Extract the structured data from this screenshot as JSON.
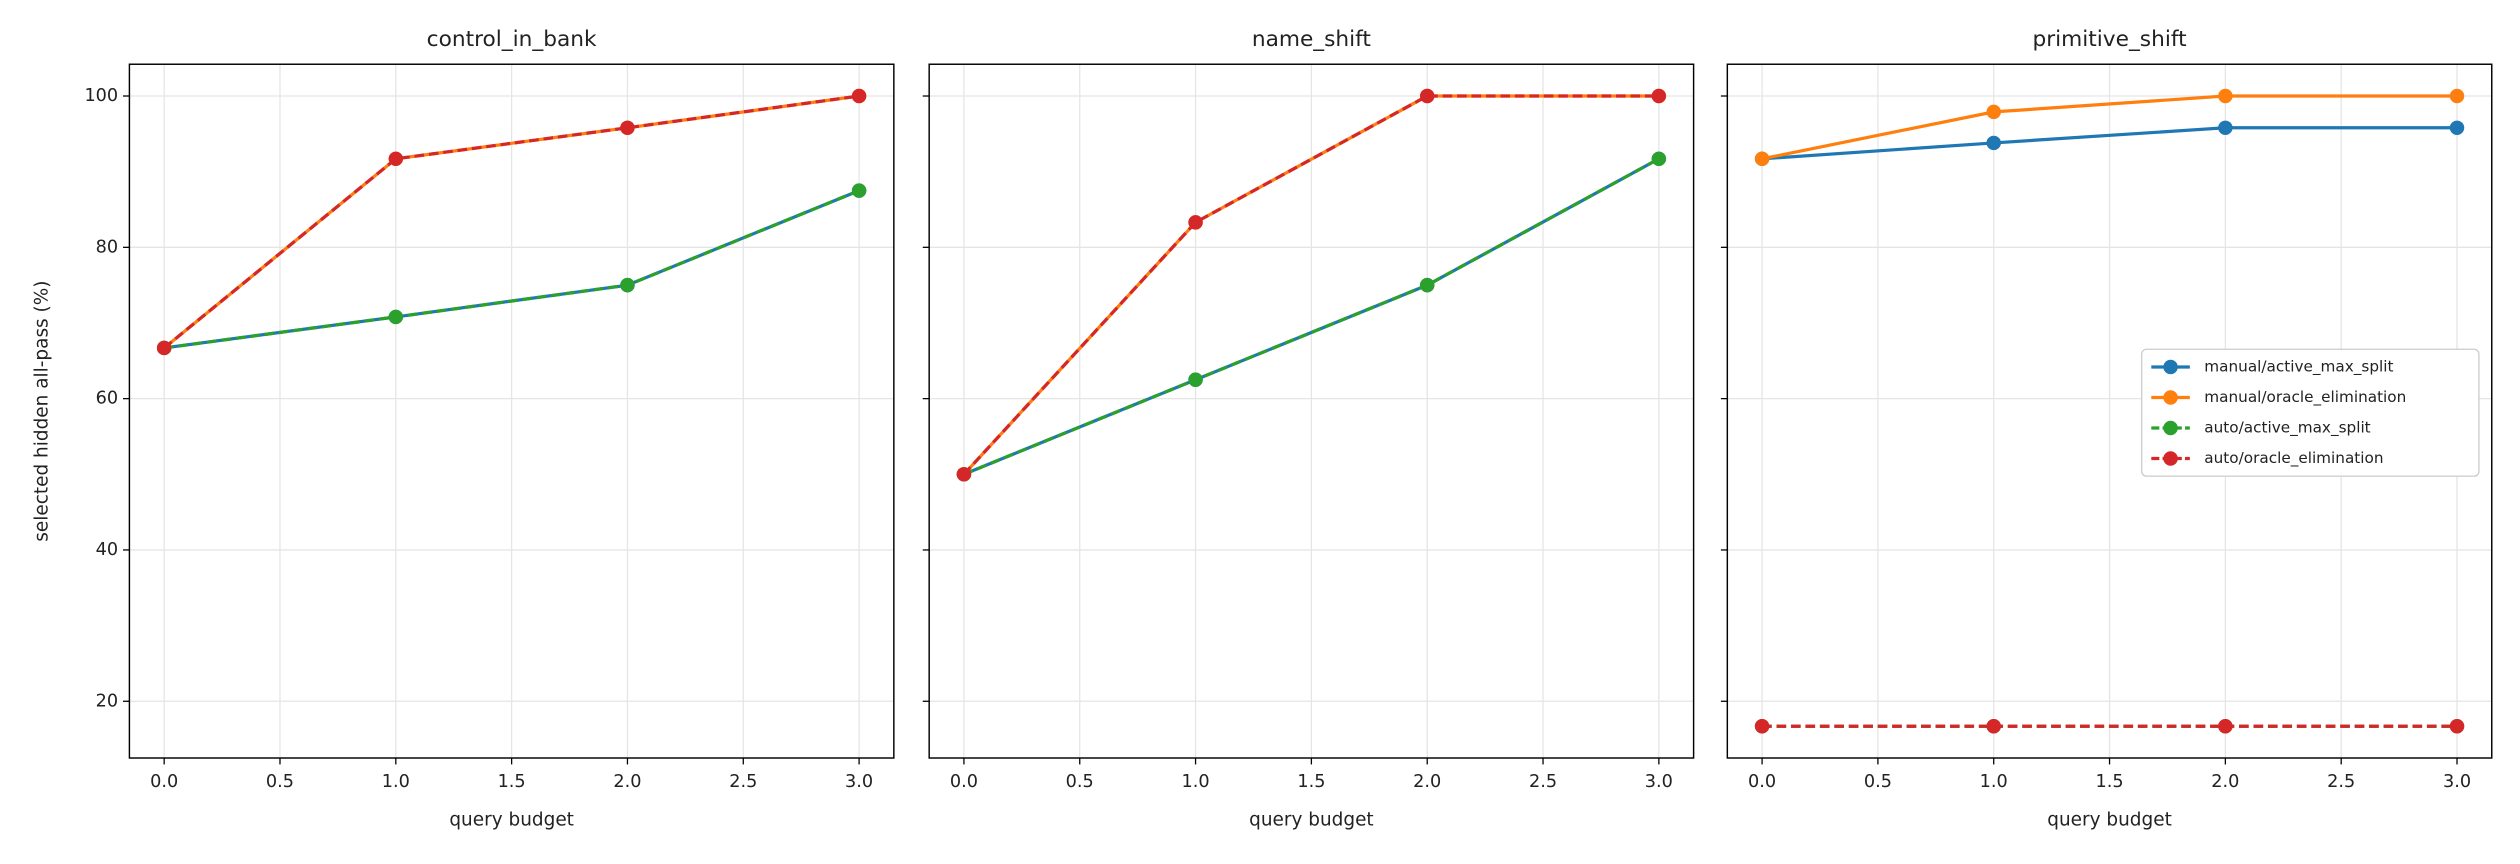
{
  "chart_data": [
    {
      "type": "line",
      "title": "control_in_bank",
      "xlabel": "query budget",
      "ylabel": "selected hidden all-pass (%)",
      "x": [
        0,
        1,
        2,
        3
      ],
      "series": [
        {
          "name": "manual/active_max_split",
          "color": "#1f77b4",
          "linestyle": "solid",
          "values": [
            66.7,
            70.8,
            75.0,
            87.5
          ]
        },
        {
          "name": "manual/oracle_elimination",
          "color": "#ff7f0e",
          "linestyle": "solid",
          "values": [
            66.7,
            91.7,
            95.8,
            100
          ]
        },
        {
          "name": "auto/active_max_split",
          "color": "#2ca02c",
          "linestyle": "dashed",
          "values": [
            66.7,
            70.8,
            75.0,
            87.5
          ]
        },
        {
          "name": "auto/oracle_elimination",
          "color": "#d62728",
          "linestyle": "dashed",
          "values": [
            66.7,
            91.7,
            95.8,
            100
          ]
        }
      ],
      "xlim": [
        -0.15,
        3.15
      ],
      "ylim": [
        12.5,
        104.2
      ],
      "xticks": [
        {
          "value": 0,
          "label": "0.0"
        },
        {
          "value": 0.5,
          "label": "0.5"
        },
        {
          "value": 1,
          "label": "1.0"
        },
        {
          "value": 1.5,
          "label": "1.5"
        },
        {
          "value": 2,
          "label": "2.0"
        },
        {
          "value": 2.5,
          "label": "2.5"
        },
        {
          "value": 3,
          "label": "3.0"
        }
      ],
      "yticks": [
        20,
        40,
        60,
        80,
        100
      ],
      "grid": true
    },
    {
      "type": "line",
      "title": "name_shift",
      "xlabel": "query budget",
      "x": [
        0,
        1,
        2,
        3
      ],
      "series": [
        {
          "name": "manual/active_max_split",
          "color": "#1f77b4",
          "linestyle": "solid",
          "values": [
            50,
            62.5,
            75.0,
            91.7
          ]
        },
        {
          "name": "manual/oracle_elimination",
          "color": "#ff7f0e",
          "linestyle": "solid",
          "values": [
            50,
            83.3,
            100,
            100
          ]
        },
        {
          "name": "auto/active_max_split",
          "color": "#2ca02c",
          "linestyle": "dashed",
          "values": [
            50,
            62.5,
            75.0,
            91.7
          ]
        },
        {
          "name": "auto/oracle_elimination",
          "color": "#d62728",
          "linestyle": "dashed",
          "values": [
            50,
            83.3,
            100,
            100
          ]
        }
      ],
      "xlim": [
        -0.15,
        3.15
      ],
      "ylim": [
        12.5,
        104.2
      ],
      "xticks": [
        {
          "value": 0,
          "label": "0.0"
        },
        {
          "value": 0.5,
          "label": "0.5"
        },
        {
          "value": 1,
          "label": "1.0"
        },
        {
          "value": 1.5,
          "label": "1.5"
        },
        {
          "value": 2,
          "label": "2.0"
        },
        {
          "value": 2.5,
          "label": "2.5"
        },
        {
          "value": 3,
          "label": "3.0"
        }
      ],
      "yticks": [
        20,
        40,
        60,
        80,
        100
      ],
      "grid": true
    },
    {
      "type": "line",
      "title": "primitive_shift",
      "xlabel": "query budget",
      "x": [
        0,
        1,
        2,
        3
      ],
      "series": [
        {
          "name": "manual/active_max_split",
          "color": "#1f77b4",
          "linestyle": "solid",
          "values": [
            91.7,
            93.8,
            95.8,
            95.8
          ]
        },
        {
          "name": "manual/oracle_elimination",
          "color": "#ff7f0e",
          "linestyle": "solid",
          "values": [
            91.7,
            97.9,
            100,
            100
          ]
        },
        {
          "name": "auto/active_max_split",
          "color": "#2ca02c",
          "linestyle": "dashed",
          "values": [
            16.7,
            16.7,
            16.7,
            16.7
          ]
        },
        {
          "name": "auto/oracle_elimination",
          "color": "#d62728",
          "linestyle": "dashed",
          "values": [
            16.7,
            16.7,
            16.7,
            16.7
          ]
        }
      ],
      "xlim": [
        -0.15,
        3.15
      ],
      "ylim": [
        12.5,
        104.2
      ],
      "xticks": [
        {
          "value": 0,
          "label": "0.0"
        },
        {
          "value": 0.5,
          "label": "0.5"
        },
        {
          "value": 1,
          "label": "1.0"
        },
        {
          "value": 1.5,
          "label": "1.5"
        },
        {
          "value": 2,
          "label": "2.0"
        },
        {
          "value": 2.5,
          "label": "2.5"
        },
        {
          "value": 3,
          "label": "3.0"
        }
      ],
      "yticks": [
        20,
        40,
        60,
        80,
        100
      ],
      "grid": true,
      "legend": "center right"
    }
  ]
}
